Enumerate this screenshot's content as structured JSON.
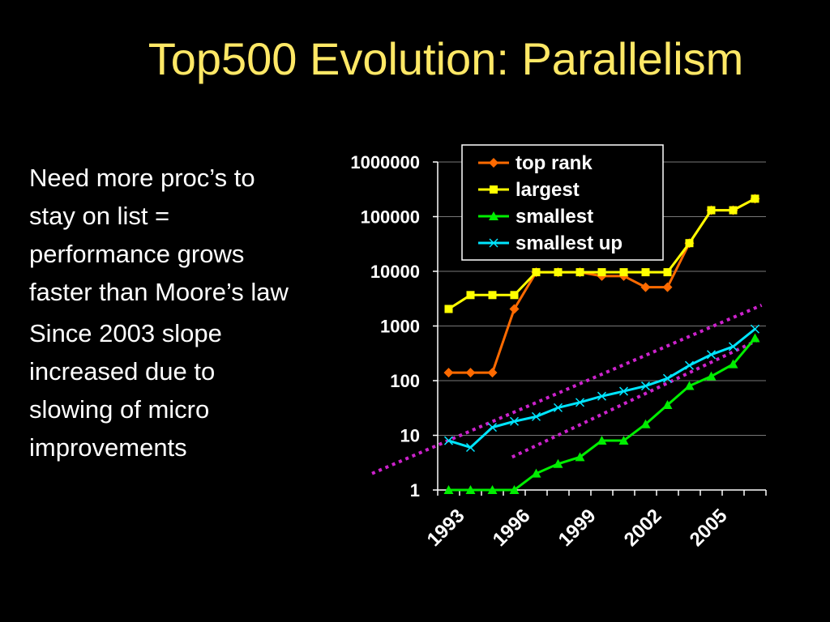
{
  "slide": {
    "title": "Top500 Evolution: Parallelism",
    "bullets": [
      "Need more proc’s to stay on list = performance grows faster than Moore’s law",
      "Since 2003 slope increased due to slowing of micro improvements"
    ]
  },
  "chart_data": {
    "type": "line",
    "y_scale": "log",
    "ylim": [
      1,
      1000000
    ],
    "y_ticks": [
      "1",
      "10",
      "100",
      "1000",
      "10000",
      "100000",
      "1000000"
    ],
    "x_tick_labels": [
      "1993",
      "1996",
      "1999",
      "2002",
      "2005"
    ],
    "legend_position": "top-right",
    "grid": true,
    "series": [
      {
        "name": "top rank",
        "color": "#FF6A00",
        "marker": "diamond",
        "values": [
          140,
          140,
          140,
          2048,
          9632,
          9632,
          9632,
          8192,
          8192,
          5120,
          5120,
          32768,
          131072,
          131072,
          212992
        ]
      },
      {
        "name": "largest",
        "color": "#FFFF00",
        "marker": "square",
        "values": [
          2048,
          3680,
          3680,
          3680,
          9632,
          9632,
          9632,
          9632,
          9632,
          9632,
          9632,
          32768,
          131072,
          131072,
          212992
        ]
      },
      {
        "name": "smallest",
        "color": "#00EE00",
        "marker": "triangle",
        "values": [
          1,
          1,
          1,
          1,
          2,
          3,
          4,
          8,
          8,
          16,
          36,
          80,
          120,
          200,
          600
        ]
      },
      {
        "name": "smallest up",
        "color": "#00E5FF",
        "marker": "x",
        "values": [
          8,
          6,
          14,
          18,
          22,
          32,
          40,
          52,
          64,
          80,
          110,
          190,
          300,
          420,
          880
        ]
      }
    ],
    "trend_lines": [
      {
        "color": "#CC22CC",
        "from": [
          -3.5,
          2
        ],
        "to": [
          14.3,
          2400
        ]
      },
      {
        "color": "#CC22CC",
        "from": [
          2.9,
          4
        ],
        "to": [
          14.2,
          570
        ]
      }
    ]
  }
}
